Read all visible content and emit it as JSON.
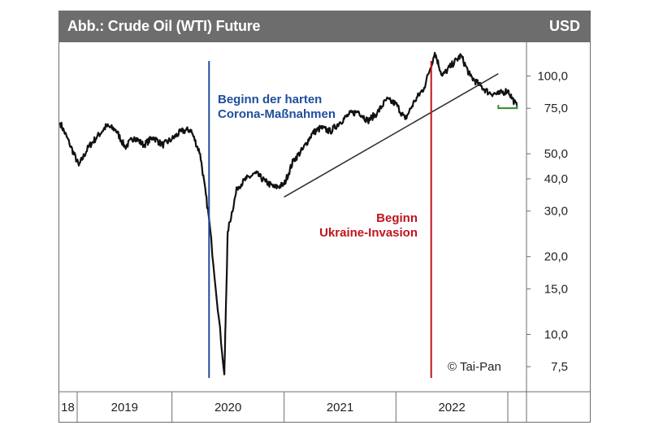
{
  "header": {
    "title": "Abb.: Crude Oil (WTI) Future",
    "currency": "USD"
  },
  "colors": {
    "header_bg": "#6d6d6d",
    "price_line": "#111111",
    "corona_line": "#1f4e9c",
    "ukraine_line": "#c0141c",
    "trend_line": "#333333",
    "recent_box": "#2f8a2f"
  },
  "annotations": {
    "corona": [
      "Beginn der harten",
      "Corona-Maßnahmen"
    ],
    "ukraine": [
      "Beginn",
      "Ukraine-Invasion"
    ],
    "copyright": "© Tai-Pan"
  },
  "chart_data": {
    "type": "line",
    "title": "Abb.: Crude Oil (WTI) Future",
    "ylabel": "USD",
    "yscale": "log",
    "ylim": [
      6,
      135
    ],
    "y_ticks": [
      7.5,
      10,
      15,
      20,
      30,
      40,
      50,
      75,
      100
    ],
    "y_tick_labels": [
      "7,5",
      "10,0",
      "15,0",
      "20,0",
      "30,0",
      "40,0",
      "50,0",
      "75,0",
      "100,0"
    ],
    "x_ticks": [
      "18",
      "2019",
      "2020",
      "2021",
      "2022"
    ],
    "xlim": [
      "2018-11",
      "2023-01"
    ],
    "grid": false,
    "series": [
      {
        "values": [
          [
            "2018-11",
            66
          ],
          [
            "2018-12",
            55
          ],
          [
            "2019-01",
            45
          ],
          [
            "2019-02",
            53
          ],
          [
            "2019-03",
            58
          ],
          [
            "2019-04",
            64
          ],
          [
            "2019-05",
            62
          ],
          [
            "2019-06",
            53
          ],
          [
            "2019-07",
            58
          ],
          [
            "2019-08",
            54
          ],
          [
            "2019-09",
            58
          ],
          [
            "2019-10",
            54
          ],
          [
            "2019-11",
            57
          ],
          [
            "2019-12",
            61
          ],
          [
            "2020-01",
            62
          ],
          [
            "2020-02",
            50
          ],
          [
            "2020-03",
            28
          ],
          [
            "2020-04-20",
            7
          ],
          [
            "2020-05",
            25
          ],
          [
            "2020-06",
            37
          ],
          [
            "2020-07",
            40
          ],
          [
            "2020-08",
            42
          ],
          [
            "2020-09",
            39
          ],
          [
            "2020-10",
            37
          ],
          [
            "2020-11",
            38
          ],
          [
            "2020-12",
            47
          ],
          [
            "2021-01",
            52
          ],
          [
            "2021-02",
            60
          ],
          [
            "2021-03",
            63
          ],
          [
            "2021-04",
            61
          ],
          [
            "2021-05",
            66
          ],
          [
            "2021-06",
            71
          ],
          [
            "2021-07",
            73
          ],
          [
            "2021-08",
            67
          ],
          [
            "2021-09",
            72
          ],
          [
            "2021-10",
            81
          ],
          [
            "2021-11",
            78
          ],
          [
            "2021-12",
            68
          ],
          [
            "2022-01",
            80
          ],
          [
            "2022-02",
            90
          ],
          [
            "2022-03-08",
            123
          ],
          [
            "2022-04",
            100
          ],
          [
            "2022-05",
            110
          ],
          [
            "2022-06",
            120
          ],
          [
            "2022-07",
            100
          ],
          [
            "2022-08",
            92
          ],
          [
            "2022-09",
            86
          ],
          [
            "2022-10",
            85
          ],
          [
            "2022-11",
            88
          ],
          [
            "2022-12",
            76
          ]
        ]
      }
    ],
    "events": [
      {
        "x": "2020-03",
        "label": "Beginn der harten Corona-Maßnahmen"
      },
      {
        "x": "2022-02-24",
        "label": "Beginn Ukraine-Invasion"
      }
    ],
    "trendline": {
      "start": [
        "2020-11",
        34
      ],
      "end": [
        "2022-10",
        102
      ]
    },
    "recent_range": {
      "start": [
        "2022-10",
        75
      ],
      "end": [
        "2022-12",
        75
      ]
    }
  }
}
